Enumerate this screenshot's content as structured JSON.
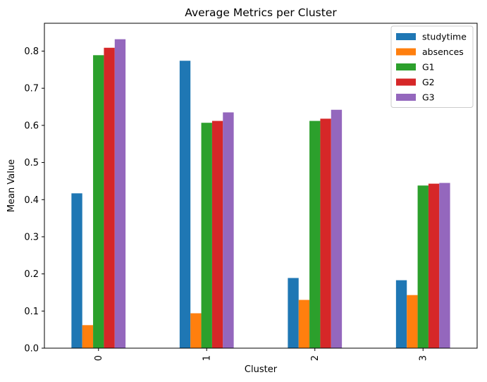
{
  "chart_data": {
    "type": "bar",
    "title": "Average Metrics per Cluster",
    "xlabel": "Cluster",
    "ylabel": "Mean Value",
    "categories": [
      "0",
      "1",
      "2",
      "3"
    ],
    "yticks": [
      "0.0",
      "0.1",
      "0.2",
      "0.3",
      "0.4",
      "0.5",
      "0.6",
      "0.7",
      "0.8"
    ],
    "ylim": [
      0,
      0.875
    ],
    "grid": false,
    "legend_position": "top-right",
    "series": [
      {
        "name": "studytime",
        "color": "#1f77b4",
        "values": [
          0.417,
          0.774,
          0.189,
          0.183
        ]
      },
      {
        "name": "absences",
        "color": "#ff7f0e",
        "values": [
          0.062,
          0.094,
          0.13,
          0.143
        ]
      },
      {
        "name": "G1",
        "color": "#2ca02c",
        "values": [
          0.789,
          0.607,
          0.612,
          0.438
        ]
      },
      {
        "name": "G2",
        "color": "#d62728",
        "values": [
          0.809,
          0.612,
          0.618,
          0.443
        ]
      },
      {
        "name": "G3",
        "color": "#9467bd",
        "values": [
          0.832,
          0.635,
          0.642,
          0.445
        ]
      }
    ]
  }
}
